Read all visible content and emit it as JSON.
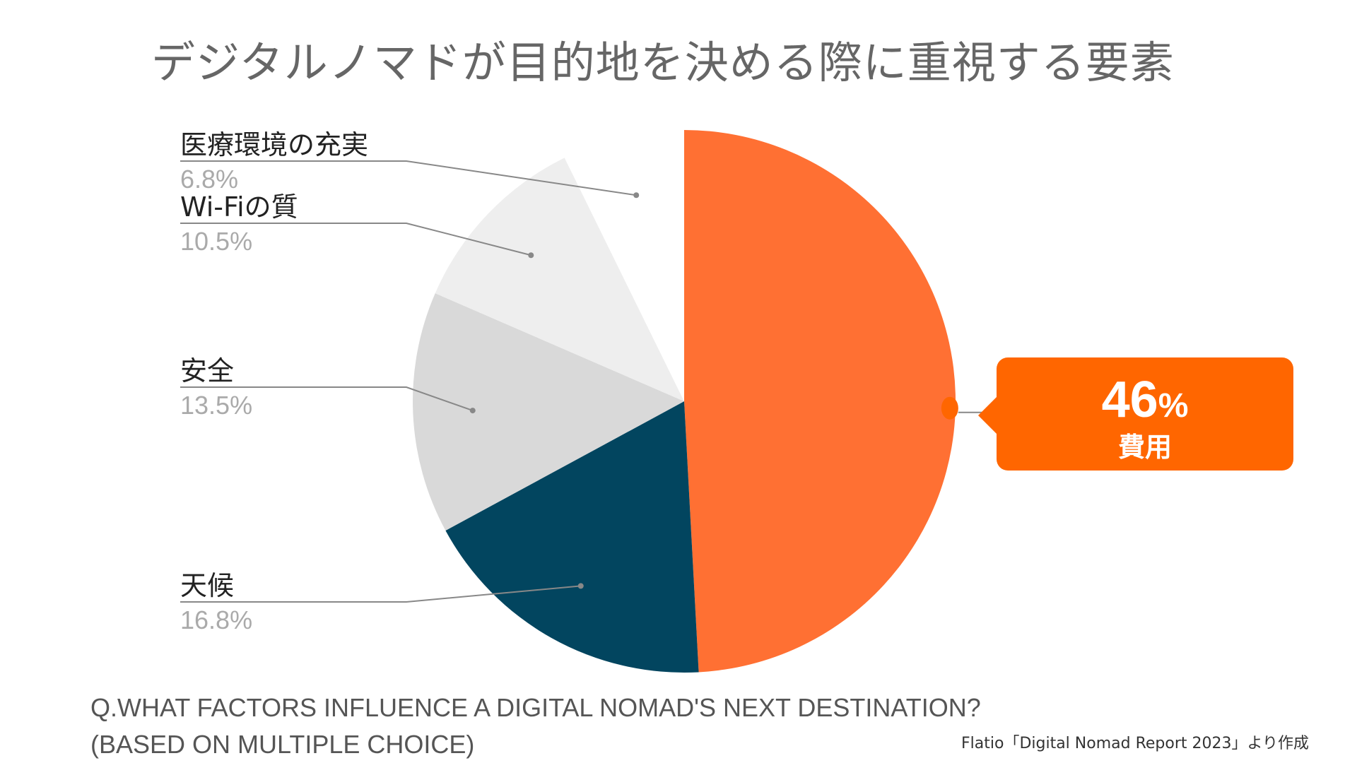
{
  "title": "デジタルノマドが目的地を決める際に重視する要素",
  "chart_data": {
    "type": "pie",
    "title": "デジタルノマドが目的地を決める際に重視する要素",
    "slices": [
      {
        "label": "費用",
        "value": 46,
        "display": "46",
        "unit": "%",
        "color": "#ff7033"
      },
      {
        "label": "天候",
        "value": 16.8,
        "display": "16.8%",
        "color": "#02455f"
      },
      {
        "label": "安全",
        "value": 13.5,
        "display": "13.5%",
        "color": "#d9d9d9"
      },
      {
        "label": "Wi-Fiの質",
        "value": 10.5,
        "display": "10.5%",
        "color": "#eeeeee"
      },
      {
        "label": "医療環境の充実",
        "value": 6.8,
        "display": "6.8%",
        "color": "#ffffff"
      }
    ],
    "highlight_color": "#ff6600"
  },
  "question": {
    "line1": "Q.WHAT FACTORS INFLUENCE A DIGITAL NOMAD'S NEXT DESTINATION?",
    "line2": "(BASED ON MULTIPLE CHOICE)"
  },
  "source": "Flatio「Digital Nomad Report 2023」より作成"
}
